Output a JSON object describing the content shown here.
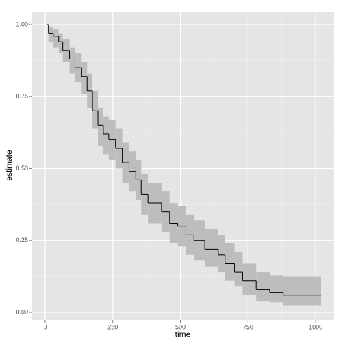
{
  "chart_data": {
    "type": "step",
    "x_label": "time",
    "y_label": "estimate",
    "x": [
      5,
      12,
      30,
      50,
      65,
      90,
      110,
      135,
      155,
      175,
      195,
      215,
      235,
      260,
      285,
      310,
      335,
      355,
      380,
      430,
      460,
      490,
      520,
      550,
      590,
      640,
      665,
      700,
      730,
      780,
      830,
      880,
      1020
    ],
    "series": [
      {
        "color": "#000000",
        "values": [
          1.0,
          0.97,
          0.96,
          0.94,
          0.91,
          0.88,
          0.85,
          0.82,
          0.77,
          0.7,
          0.65,
          0.62,
          0.6,
          0.57,
          0.52,
          0.49,
          0.46,
          0.41,
          0.38,
          0.35,
          0.31,
          0.3,
          0.27,
          0.25,
          0.22,
          0.2,
          0.17,
          0.14,
          0.11,
          0.08,
          0.07,
          0.06,
          0.06
        ],
        "lower": [
          1.0,
          0.94,
          0.92,
          0.9,
          0.87,
          0.83,
          0.8,
          0.76,
          0.71,
          0.64,
          0.58,
          0.55,
          0.53,
          0.5,
          0.45,
          0.42,
          0.39,
          0.34,
          0.31,
          0.28,
          0.24,
          0.23,
          0.2,
          0.18,
          0.16,
          0.14,
          0.11,
          0.09,
          0.06,
          0.04,
          0.035,
          0.025,
          0.025
        ],
        "upper": [
          1.0,
          0.99,
          0.985,
          0.97,
          0.95,
          0.92,
          0.9,
          0.87,
          0.83,
          0.77,
          0.71,
          0.68,
          0.67,
          0.64,
          0.59,
          0.56,
          0.53,
          0.48,
          0.45,
          0.42,
          0.38,
          0.37,
          0.34,
          0.32,
          0.29,
          0.27,
          0.24,
          0.21,
          0.17,
          0.14,
          0.13,
          0.125,
          0.125
        ],
        "band_color": "#bdbdbd"
      }
    ],
    "xlim": [
      -48,
      1068
    ],
    "ylim": [
      -0.026,
      1.045
    ],
    "xticks": [
      0,
      250,
      500,
      750,
      1000
    ],
    "yticks": [
      {
        "value": 0,
        "label": "0.00"
      },
      {
        "value": 0.25,
        "label": "0.25"
      },
      {
        "value": 0.5,
        "label": "0.50"
      },
      {
        "value": 0.75,
        "label": "0.75"
      },
      {
        "value": 1,
        "label": "1.00"
      }
    ],
    "x_minor_ticks": [
      125,
      375,
      625,
      875
    ],
    "y_minor_ticks": [
      0.125,
      0.375,
      0.625,
      0.875
    ],
    "grid": true
  }
}
